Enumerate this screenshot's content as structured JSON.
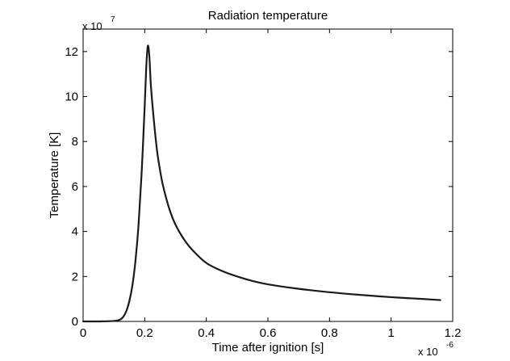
{
  "chart_data": {
    "type": "line",
    "title": "Radiation temperature",
    "xlabel": "Time after ignition [s]",
    "ylabel": "Temperature [K]",
    "x_multiplier": {
      "base": "x 10",
      "exponent": "-6"
    },
    "y_multiplier": {
      "base": "x 10",
      "exponent": "7"
    },
    "xlim": [
      0,
      1.2e-06
    ],
    "ylim": [
      0,
      130000000.0
    ],
    "x_ticks": [
      0,
      2e-07,
      4e-07,
      6e-07,
      8e-07,
      1e-06,
      1.2e-06
    ],
    "x_tick_labels": [
      "0",
      "0.2",
      "0.4",
      "0.6",
      "0.8",
      "1",
      "1.2"
    ],
    "y_ticks": [
      0,
      20000000.0,
      40000000.0,
      60000000.0,
      80000000.0,
      100000000.0,
      120000000.0
    ],
    "y_tick_labels": [
      "0",
      "2",
      "4",
      "6",
      "8",
      "10",
      "12"
    ],
    "grid": false,
    "legend": "none",
    "line_color": "#1a1a1a",
    "series": [
      {
        "x": [
          0,
          5e-08,
          1e-07,
          1.2e-07,
          1.3e-07,
          1.4e-07,
          1.5e-07,
          1.6e-07,
          1.7e-07,
          1.8e-07,
          1.9e-07,
          2e-07,
          2.05e-07,
          2.1e-07,
          2.15e-07,
          2.2e-07,
          2.3e-07,
          2.4e-07,
          2.5e-07,
          2.6e-07,
          2.8e-07,
          3e-07,
          3.3e-07,
          3.6e-07,
          4e-07,
          4.5e-07,
          5e-07,
          5.5e-07,
          6e-07,
          7e-07,
          8e-07,
          9e-07,
          1e-06,
          1.1e-06,
          1.16e-06
        ],
        "y": [
          0,
          0,
          200000.0,
          800000.0,
          2000000.0,
          4500000.0,
          9000000.0,
          16000000.0,
          27000000.0,
          43000000.0,
          66000000.0,
          96000000.0,
          113000000.0,
          122500000.0,
          118000000.0,
          105000000.0,
          89000000.0,
          76000000.0,
          67000000.0,
          60000000.0,
          50000000.0,
          43000000.0,
          36000000.0,
          31000000.0,
          26000000.0,
          22500000.0,
          20000000.0,
          18000000.0,
          16500000.0,
          14500000.0,
          13000000.0,
          11800000.0,
          10800000.0,
          10000000.0,
          9500000.0
        ]
      }
    ]
  }
}
